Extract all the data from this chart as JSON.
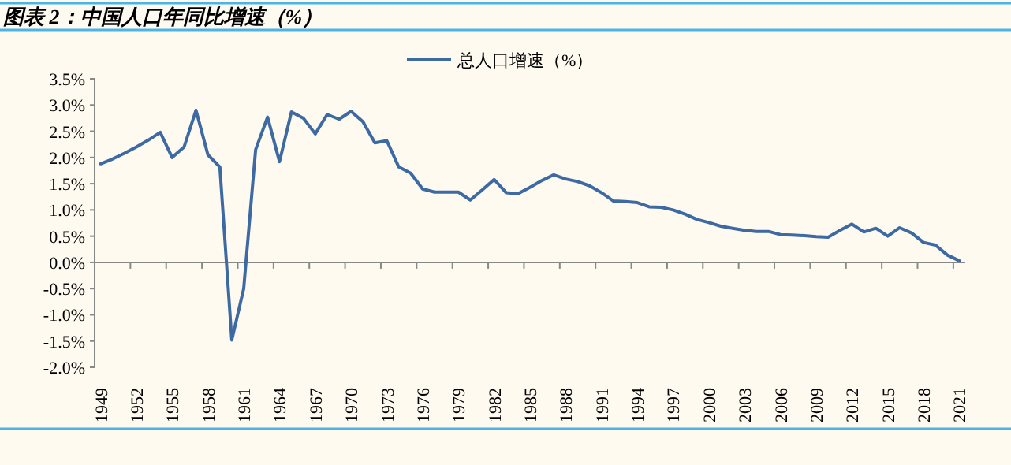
{
  "chart_data": {
    "type": "line",
    "title": "图表 2：中国人口年同比增速（%）",
    "categories": [
      "1949",
      null,
      null,
      "1952",
      null,
      null,
      "1955",
      null,
      null,
      "1958",
      null,
      null,
      "1961",
      null,
      null,
      "1964",
      null,
      null,
      "1967",
      null,
      null,
      "1970",
      null,
      null,
      "1973",
      null,
      null,
      "1976",
      null,
      null,
      "1979",
      null,
      null,
      "1982",
      null,
      null,
      "1985",
      null,
      null,
      "1988",
      null,
      null,
      "1991",
      null,
      null,
      "1994",
      null,
      null,
      "1997",
      null,
      null,
      "2000",
      null,
      null,
      "2003",
      null,
      null,
      "2006",
      null,
      null,
      "2009",
      null,
      null,
      "2012",
      null,
      null,
      "2015",
      null,
      null,
      "2018",
      null,
      null,
      "2021"
    ],
    "series": [
      {
        "name": "总人口增速（%）",
        "color": "#3d6aa3",
        "values": [
          1.88,
          1.97,
          2.08,
          2.2,
          2.33,
          2.48,
          2.0,
          2.2,
          2.9,
          2.05,
          1.82,
          -1.48,
          -0.5,
          2.15,
          2.77,
          1.92,
          2.87,
          2.75,
          2.45,
          2.82,
          2.73,
          2.88,
          2.68,
          2.28,
          2.32,
          1.82,
          1.7,
          1.4,
          1.34,
          1.34,
          1.34,
          1.19,
          1.38,
          1.58,
          1.33,
          1.31,
          1.43,
          1.56,
          1.67,
          1.59,
          1.54,
          1.46,
          1.33,
          1.17,
          1.16,
          1.14,
          1.06,
          1.05,
          1.0,
          0.92,
          0.82,
          0.76,
          0.69,
          0.65,
          0.61,
          0.59,
          0.59,
          0.53,
          0.52,
          0.51,
          0.49,
          0.48,
          0.61,
          0.73,
          0.58,
          0.65,
          0.5,
          0.66,
          0.56,
          0.38,
          0.33,
          0.14,
          0.03
        ]
      }
    ],
    "ylim": [
      -2,
      3.5
    ],
    "yticks": [
      {
        "value": -2,
        "label": "-2.0%"
      },
      {
        "value": -1.5,
        "label": "-1.5%"
      },
      {
        "value": -1,
        "label": "-1.0%"
      },
      {
        "value": -0.5,
        "label": "-0.5%"
      },
      {
        "value": 0,
        "label": "0.0%"
      },
      {
        "value": 0.5,
        "label": "0.5%"
      },
      {
        "value": 1,
        "label": "1.0%"
      },
      {
        "value": 1.5,
        "label": "1.5%"
      },
      {
        "value": 2,
        "label": "2.0%"
      },
      {
        "value": 2.5,
        "label": "2.5%"
      },
      {
        "value": 3,
        "label": "3.0%"
      },
      {
        "value": 3.5,
        "label": "3.5%"
      }
    ],
    "legend": "top",
    "marker": "none",
    "line_style": "solid"
  }
}
